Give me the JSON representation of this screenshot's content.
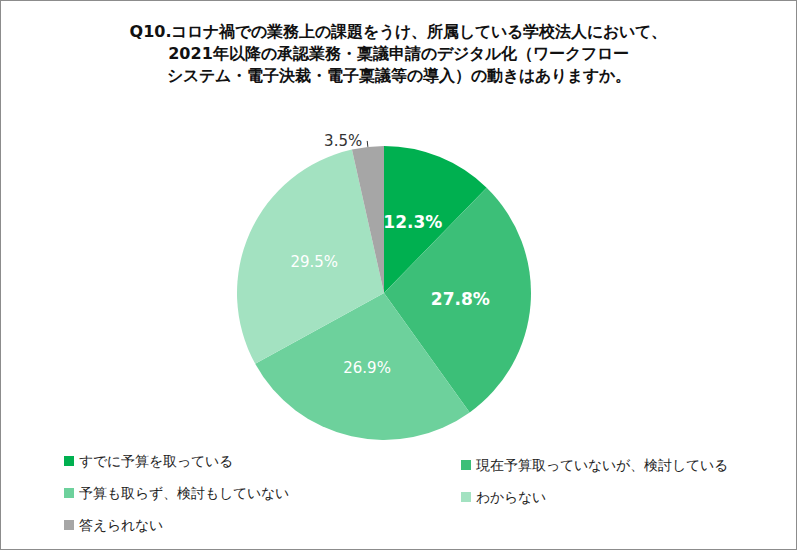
{
  "chart_data": {
    "type": "pie",
    "title": "Q10.コロナ禍での業務上の課題をうけ、所属している学校法人において、\n2021年以降の承認業務・稟議申請のデジタル化（ワークフロー\nシステム・電子決裁・電子稟議等の導入）の動きはありますか。",
    "categories": [
      "すでに予算を取っている",
      "現在予算取っていないが、検討している",
      "予算も取らず、検討もしていない",
      "わからない",
      "答えられない"
    ],
    "values": [
      12.3,
      27.8,
      26.9,
      29.5,
      3.5
    ],
    "value_labels": [
      "12.3%",
      "27.8%",
      "26.9%",
      "29.5%",
      "3.5%"
    ],
    "colors": [
      "#00b050",
      "#3cbf78",
      "#6dd19c",
      "#a3e2c1",
      "#a6a6a6"
    ],
    "data_labels": true,
    "legend": "bottom"
  }
}
